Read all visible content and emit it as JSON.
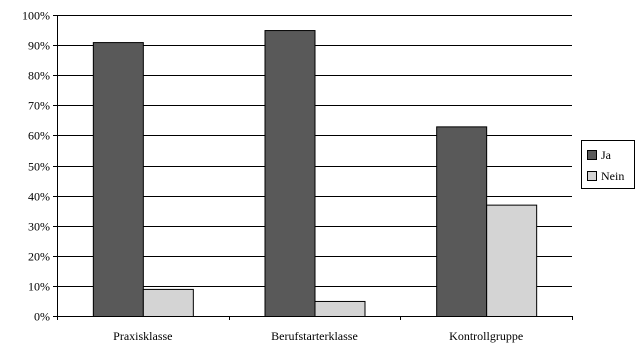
{
  "chart_data": {
    "type": "bar",
    "categories": [
      "Praxisklasse",
      "Berufstarterklasse",
      "Kontrollgruppe"
    ],
    "series": [
      {
        "name": "Ja",
        "values": [
          91,
          95,
          63
        ],
        "color": "#595959"
      },
      {
        "name": "Nein",
        "values": [
          9,
          5,
          37
        ],
        "color": "#d4d4d4"
      }
    ],
    "ylim": [
      0,
      100
    ],
    "yticks": [
      0,
      10,
      20,
      30,
      40,
      50,
      60,
      70,
      80,
      90,
      100
    ],
    "ytick_suffix": "%",
    "grid": true,
    "legend_position": "right",
    "title": "",
    "xlabel": "",
    "ylabel": ""
  }
}
